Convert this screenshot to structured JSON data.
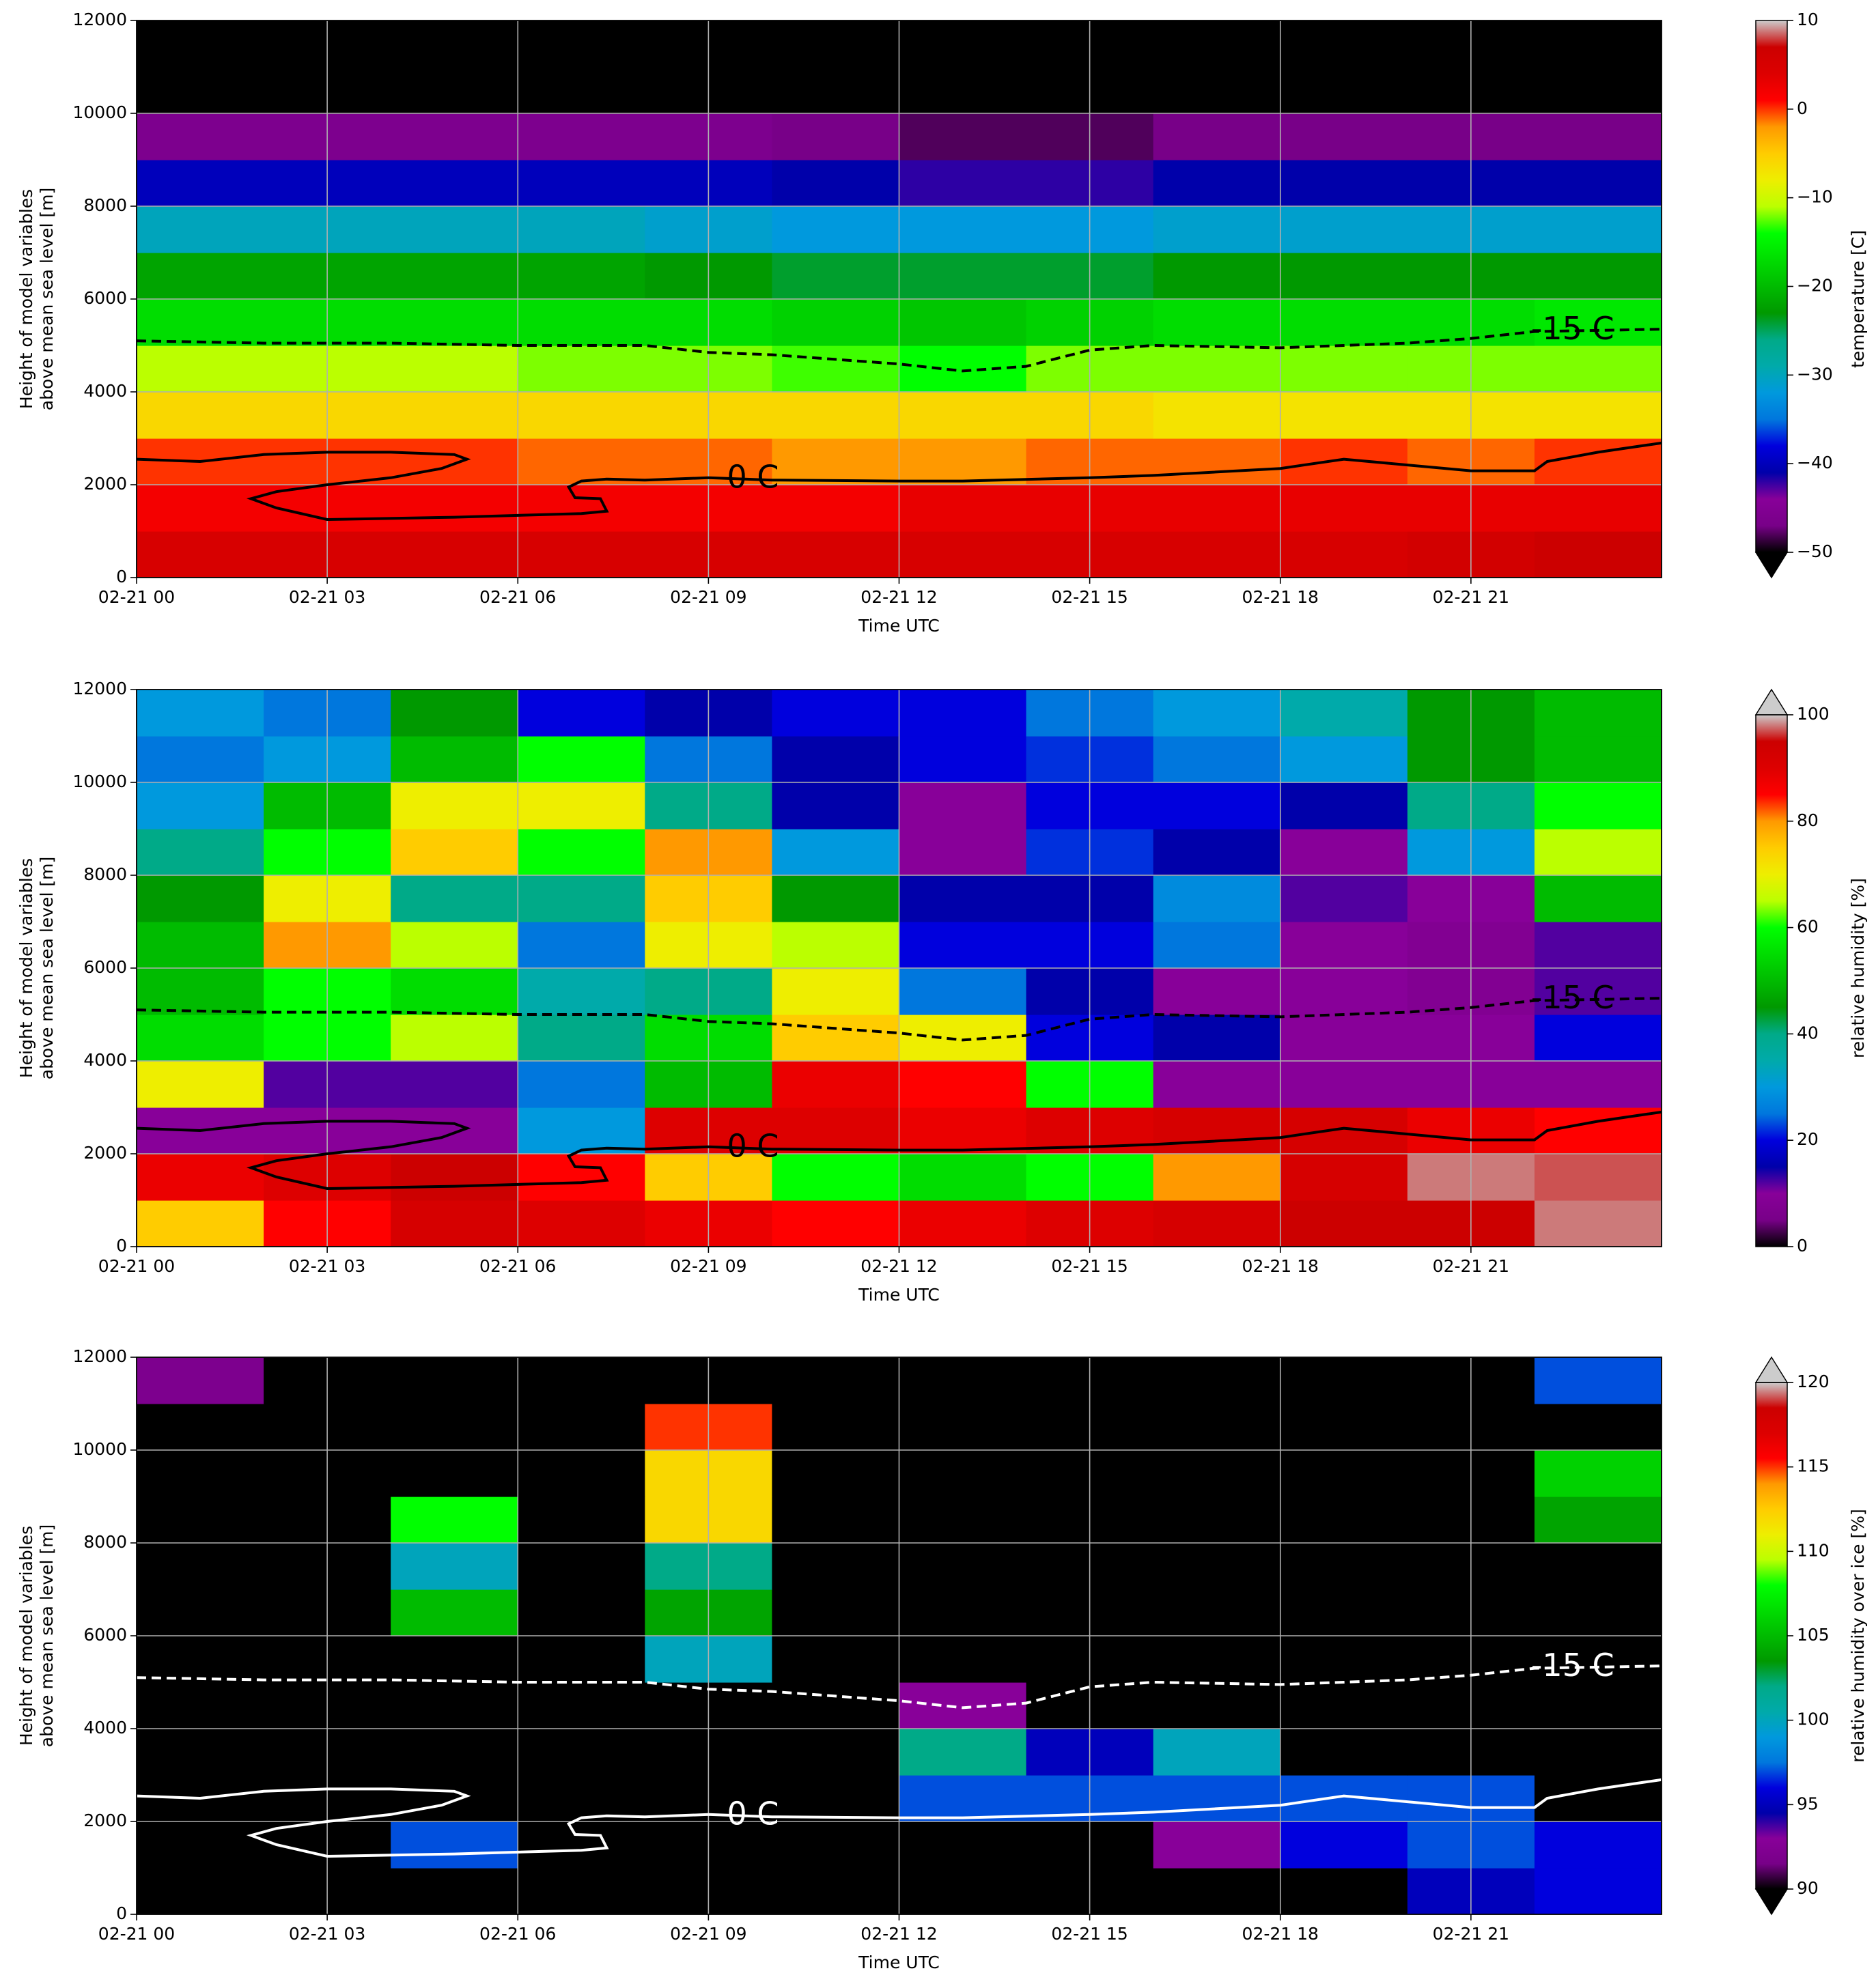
{
  "chart_data": [
    {
      "type": "heatmap",
      "xlabel": "Time UTC",
      "ylabel": [
        "Height of model variables",
        "above mean sea level [m]"
      ],
      "xlim": [
        0,
        24
      ],
      "ylim": [
        0,
        12000
      ],
      "grid": true,
      "xticks": [
        {
          "value": 0,
          "label": "02-21 00"
        },
        {
          "value": 3,
          "label": "02-21 03"
        },
        {
          "value": 6,
          "label": "02-21 06"
        },
        {
          "value": 9,
          "label": "02-21 09"
        },
        {
          "value": 12,
          "label": "02-21 12"
        },
        {
          "value": 15,
          "label": "02-21 15"
        },
        {
          "value": 18,
          "label": "02-21 18"
        },
        {
          "value": 21,
          "label": "02-21 21"
        }
      ],
      "yticks": [
        0,
        2000,
        4000,
        6000,
        8000,
        10000,
        12000
      ],
      "x": [
        1,
        3,
        5,
        7,
        9,
        11,
        13,
        15,
        17,
        19,
        21,
        23
      ],
      "y": [
        500,
        1500,
        2500,
        3500,
        4500,
        5500,
        6500,
        7500,
        8500,
        9500,
        10500,
        11500
      ],
      "z": [
        [
          5,
          5,
          5,
          5,
          5,
          5,
          5,
          5,
          5,
          5,
          6,
          7
        ],
        [
          2,
          2,
          2,
          2,
          2,
          2,
          3,
          3,
          3,
          3,
          3,
          3
        ],
        [
          0,
          0,
          0,
          -1,
          -1,
          -2,
          -2,
          -1,
          -1,
          0,
          -1,
          0
        ],
        [
          -6,
          -6,
          -6,
          -6,
          -6,
          -6,
          -6,
          -6,
          -7,
          -7,
          -7,
          -7
        ],
        [
          -11,
          -11,
          -11,
          -12,
          -12,
          -13,
          -14,
          -12,
          -12,
          -12,
          -12,
          -12
        ],
        [
          -17,
          -17,
          -17,
          -17,
          -17,
          -18,
          -19,
          -18,
          -17,
          -17,
          -17,
          -16
        ],
        [
          -22,
          -22,
          -22,
          -22,
          -23,
          -24,
          -24,
          -24,
          -23,
          -23,
          -23,
          -23
        ],
        [
          -30,
          -30,
          -30,
          -30,
          -31,
          -32,
          -32,
          -32,
          -31,
          -31,
          -31,
          -31
        ],
        [
          -40,
          -40,
          -40,
          -40,
          -40,
          -41,
          -42,
          -42,
          -41,
          -41,
          -41,
          -41
        ],
        [
          -46,
          -46,
          -46,
          -46,
          -46,
          -47,
          -48,
          -48,
          -47,
          -47,
          -47,
          -47
        ],
        [
          -55,
          -55,
          -55,
          -55,
          -55,
          -55,
          -55,
          -55,
          -55,
          -55,
          -55,
          -55
        ],
        [
          -55,
          -55,
          -55,
          -55,
          -55,
          -55,
          -55,
          -55,
          -55,
          -55,
          -55,
          -55
        ]
      ],
      "clim": [
        -50,
        10
      ],
      "extend": "min",
      "clabel": "temperature [C]",
      "cticks": [
        {
          "value": -50,
          "label": "−50"
        },
        {
          "value": -40,
          "label": "−40"
        },
        {
          "value": -30,
          "label": "−30"
        },
        {
          "value": -20,
          "label": "−20"
        },
        {
          "value": -10,
          "label": "−10"
        },
        0,
        10
      ],
      "colormap": [
        "#000000",
        "#780088",
        "#880099",
        "#0000aa",
        "#0000dd",
        "#0077dd",
        "#0099dd",
        "#00aaaa",
        "#00aa88",
        "#009900",
        "#00bb00",
        "#00dd00",
        "#00ff00",
        "#bbff00",
        "#eeee00",
        "#ffcc00",
        "#ff9900",
        "#ff0000",
        "#dd0000",
        "#cc0000",
        "#cccccc"
      ],
      "contours": [
        {
          "label": "-15 C",
          "color": "#000000",
          "dashed": true,
          "x": [
            0,
            2,
            4,
            6,
            8,
            9,
            10,
            11,
            12,
            13,
            14,
            15,
            16,
            18,
            19,
            20,
            21,
            22,
            24
          ],
          "y": [
            5100,
            5050,
            5050,
            5000,
            5000,
            4850,
            4800,
            4700,
            4600,
            4450,
            4550,
            4900,
            5000,
            4950,
            5000,
            5050,
            5150,
            5300,
            5350
          ]
        },
        {
          "label": "0 C",
          "color": "#000000",
          "dashed": false,
          "x": [
            0,
            1,
            2,
            3,
            4,
            5,
            5.2,
            4.8,
            4,
            3,
            2.2,
            1.8,
            2.2,
            3,
            5,
            7,
            7.4,
            7.3,
            6.9,
            6.8,
            7,
            7.4,
            8,
            9,
            10,
            12,
            13,
            15,
            16,
            18,
            19,
            21,
            22,
            22.2,
            23,
            24
          ],
          "y": [
            2550,
            2500,
            2650,
            2700,
            2700,
            2650,
            2550,
            2350,
            2150,
            2000,
            1850,
            1700,
            1500,
            1250,
            1300,
            1380,
            1430,
            1700,
            1720,
            1950,
            2080,
            2120,
            2100,
            2150,
            2100,
            2080,
            2080,
            2150,
            2200,
            2350,
            2550,
            2300,
            2300,
            2500,
            2700,
            2900
          ]
        }
      ]
    },
    {
      "type": "heatmap",
      "xlabel": "Time UTC",
      "ylabel": [
        "Height of model variables",
        "above mean sea level [m]"
      ],
      "xlim": [
        0,
        24
      ],
      "ylim": [
        0,
        12000
      ],
      "grid": true,
      "xticks": [
        {
          "value": 0,
          "label": "02-21 00"
        },
        {
          "value": 3,
          "label": "02-21 03"
        },
        {
          "value": 6,
          "label": "02-21 06"
        },
        {
          "value": 9,
          "label": "02-21 09"
        },
        {
          "value": 12,
          "label": "02-21 12"
        },
        {
          "value": 15,
          "label": "02-21 15"
        },
        {
          "value": 18,
          "label": "02-21 18"
        },
        {
          "value": 21,
          "label": "02-21 21"
        }
      ],
      "yticks": [
        0,
        2000,
        4000,
        6000,
        8000,
        10000,
        12000
      ],
      "x": [
        1,
        3,
        5,
        7,
        9,
        11,
        13,
        15,
        17,
        19,
        21,
        23
      ],
      "y": [
        500,
        1500,
        2500,
        3500,
        4500,
        5500,
        6500,
        7500,
        8500,
        9500,
        10500,
        11500
      ],
      "z": [
        [
          75,
          85,
          92,
          90,
          88,
          85,
          88,
          90,
          92,
          95,
          95,
          98
        ],
        [
          88,
          90,
          95,
          85,
          75,
          60,
          55,
          60,
          80,
          92,
          98,
          97
        ],
        [
          10,
          10,
          10,
          30,
          90,
          90,
          88,
          90,
          92,
          92,
          88,
          85
        ],
        [
          70,
          12,
          12,
          25,
          50,
          88,
          85,
          60,
          10,
          10,
          10,
          10
        ],
        [
          55,
          60,
          65,
          40,
          55,
          75,
          70,
          20,
          15,
          10,
          10,
          20
        ],
        [
          50,
          60,
          55,
          35,
          40,
          70,
          25,
          15,
          10,
          10,
          8,
          12
        ],
        [
          50,
          80,
          65,
          25,
          70,
          65,
          20,
          20,
          25,
          10,
          8,
          12
        ],
        [
          45,
          70,
          40,
          40,
          75,
          45,
          15,
          15,
          28,
          12,
          10,
          50
        ],
        [
          40,
          60,
          75,
          60,
          80,
          30,
          10,
          22,
          15,
          10,
          30,
          65
        ],
        [
          30,
          50,
          70,
          70,
          40,
          15,
          10,
          20,
          20,
          15,
          40,
          60
        ],
        [
          25,
          30,
          50,
          60,
          25,
          15,
          20,
          22,
          25,
          30,
          45,
          50
        ],
        [
          30,
          25,
          45,
          20,
          15,
          20,
          20,
          25,
          30,
          35,
          45,
          50
        ]
      ],
      "clim": [
        0,
        100
      ],
      "extend": "max",
      "clabel": "relative humidity [%]",
      "cticks": [
        0,
        20,
        40,
        60,
        80,
        100
      ],
      "colormap": [
        "#000000",
        "#780088",
        "#880099",
        "#0000aa",
        "#0000dd",
        "#0077dd",
        "#0099dd",
        "#00aaaa",
        "#00aa88",
        "#009900",
        "#00bb00",
        "#00dd00",
        "#00ff00",
        "#bbff00",
        "#eeee00",
        "#ffcc00",
        "#ff9900",
        "#ff0000",
        "#dd0000",
        "#cc0000",
        "#cccccc"
      ],
      "contours": [
        {
          "label": "-15 C",
          "color": "#000000",
          "dashed": true,
          "x": [
            0,
            2,
            4,
            6,
            8,
            9,
            10,
            11,
            12,
            13,
            14,
            15,
            16,
            18,
            19,
            20,
            21,
            22,
            24
          ],
          "y": [
            5100,
            5050,
            5050,
            5000,
            5000,
            4850,
            4800,
            4700,
            4600,
            4450,
            4550,
            4900,
            5000,
            4950,
            5000,
            5050,
            5150,
            5300,
            5350
          ]
        },
        {
          "label": "0 C",
          "color": "#000000",
          "dashed": false,
          "x": [
            0,
            1,
            2,
            3,
            4,
            5,
            5.2,
            4.8,
            4,
            3,
            2.2,
            1.8,
            2.2,
            3,
            5,
            7,
            7.4,
            7.3,
            6.9,
            6.8,
            7,
            7.4,
            8,
            9,
            10,
            12,
            13,
            15,
            16,
            18,
            19,
            21,
            22,
            22.2,
            23,
            24
          ],
          "y": [
            2550,
            2500,
            2650,
            2700,
            2700,
            2650,
            2550,
            2350,
            2150,
            2000,
            1850,
            1700,
            1500,
            1250,
            1300,
            1380,
            1430,
            1700,
            1720,
            1950,
            2080,
            2120,
            2100,
            2150,
            2100,
            2080,
            2080,
            2150,
            2200,
            2350,
            2550,
            2300,
            2300,
            2500,
            2700,
            2900
          ]
        }
      ]
    },
    {
      "type": "heatmap",
      "xlabel": "Time UTC",
      "ylabel": [
        "Height of model variables",
        "above mean sea level [m]"
      ],
      "xlim": [
        0,
        24
      ],
      "ylim": [
        0,
        12000
      ],
      "grid": true,
      "xticks": [
        {
          "value": 0,
          "label": "02-21 00"
        },
        {
          "value": 3,
          "label": "02-21 03"
        },
        {
          "value": 6,
          "label": "02-21 06"
        },
        {
          "value": 9,
          "label": "02-21 09"
        },
        {
          "value": 12,
          "label": "02-21 12"
        },
        {
          "value": 15,
          "label": "02-21 15"
        },
        {
          "value": 18,
          "label": "02-21 18"
        },
        {
          "value": 21,
          "label": "02-21 21"
        }
      ],
      "yticks": [
        0,
        2000,
        4000,
        6000,
        8000,
        10000,
        12000
      ],
      "x": [
        1,
        3,
        5,
        7,
        9,
        11,
        13,
        15,
        17,
        19,
        21,
        23
      ],
      "y": [
        500,
        1500,
        2500,
        3500,
        4500,
        5500,
        6500,
        7500,
        8500,
        9500,
        10500,
        11500
      ],
      "z": [
        [
          85,
          85,
          85,
          85,
          85,
          85,
          85,
          85,
          85,
          85,
          95,
          96
        ],
        [
          85,
          85,
          97,
          85,
          85,
          85,
          85,
          85,
          93,
          96,
          97,
          96
        ],
        [
          85,
          85,
          85,
          85,
          90,
          85,
          97,
          97,
          97,
          97,
          97,
          85
        ],
        [
          85,
          85,
          85,
          85,
          85,
          85,
          102,
          95,
          100,
          85,
          85,
          85
        ],
        [
          85,
          85,
          85,
          85,
          85,
          85,
          93,
          85,
          85,
          85,
          85,
          85
        ],
        [
          85,
          85,
          85,
          85,
          100,
          85,
          85,
          85,
          85,
          85,
          85,
          85
        ],
        [
          85,
          85,
          105,
          85,
          104,
          85,
          85,
          85,
          85,
          85,
          85,
          85
        ],
        [
          85,
          85,
          100,
          85,
          102,
          85,
          85,
          85,
          85,
          85,
          85,
          85
        ],
        [
          85,
          85,
          108,
          85,
          112,
          85,
          85,
          85,
          85,
          85,
          85,
          104
        ],
        [
          85,
          85,
          85,
          85,
          112,
          85,
          85,
          85,
          85,
          85,
          85,
          106
        ],
        [
          85,
          85,
          85,
          85,
          115,
          85,
          85,
          85,
          85,
          85,
          85,
          85
        ],
        [
          92,
          85,
          85,
          85,
          85,
          85,
          85,
          85,
          85,
          85,
          85,
          97
        ]
      ],
      "clim": [
        90,
        120
      ],
      "extend": "both",
      "clabel": "relative humidity over ice [%]",
      "cticks": [
        90,
        95,
        100,
        105,
        110,
        115,
        120
      ],
      "colormap": [
        "#000000",
        "#780088",
        "#880099",
        "#0000aa",
        "#0000dd",
        "#0077dd",
        "#0099dd",
        "#00aaaa",
        "#00aa88",
        "#009900",
        "#00bb00",
        "#00dd00",
        "#00ff00",
        "#bbff00",
        "#eeee00",
        "#ffcc00",
        "#ff9900",
        "#ff0000",
        "#dd0000",
        "#cc0000",
        "#cccccc"
      ],
      "contours": [
        {
          "label": "-15 C",
          "color": "#ffffff",
          "dashed": true,
          "x": [
            0,
            2,
            4,
            6,
            8,
            9,
            10,
            11,
            12,
            13,
            14,
            15,
            16,
            18,
            19,
            20,
            21,
            22,
            24
          ],
          "y": [
            5100,
            5050,
            5050,
            5000,
            5000,
            4850,
            4800,
            4700,
            4600,
            4450,
            4550,
            4900,
            5000,
            4950,
            5000,
            5050,
            5150,
            5300,
            5350
          ]
        },
        {
          "label": "0 C",
          "color": "#ffffff",
          "dashed": false,
          "x": [
            0,
            1,
            2,
            3,
            4,
            5,
            5.2,
            4.8,
            4,
            3,
            2.2,
            1.8,
            2.2,
            3,
            5,
            7,
            7.4,
            7.3,
            6.9,
            6.8,
            7,
            7.4,
            8,
            9,
            10,
            12,
            13,
            15,
            16,
            18,
            19,
            21,
            22,
            22.2,
            23,
            24
          ],
          "y": [
            2550,
            2500,
            2650,
            2700,
            2700,
            2650,
            2550,
            2350,
            2150,
            2000,
            1850,
            1700,
            1500,
            1250,
            1300,
            1380,
            1430,
            1700,
            1720,
            1950,
            2080,
            2120,
            2100,
            2150,
            2100,
            2080,
            2080,
            2150,
            2200,
            2350,
            2550,
            2300,
            2300,
            2500,
            2700,
            2900
          ]
        }
      ]
    }
  ]
}
